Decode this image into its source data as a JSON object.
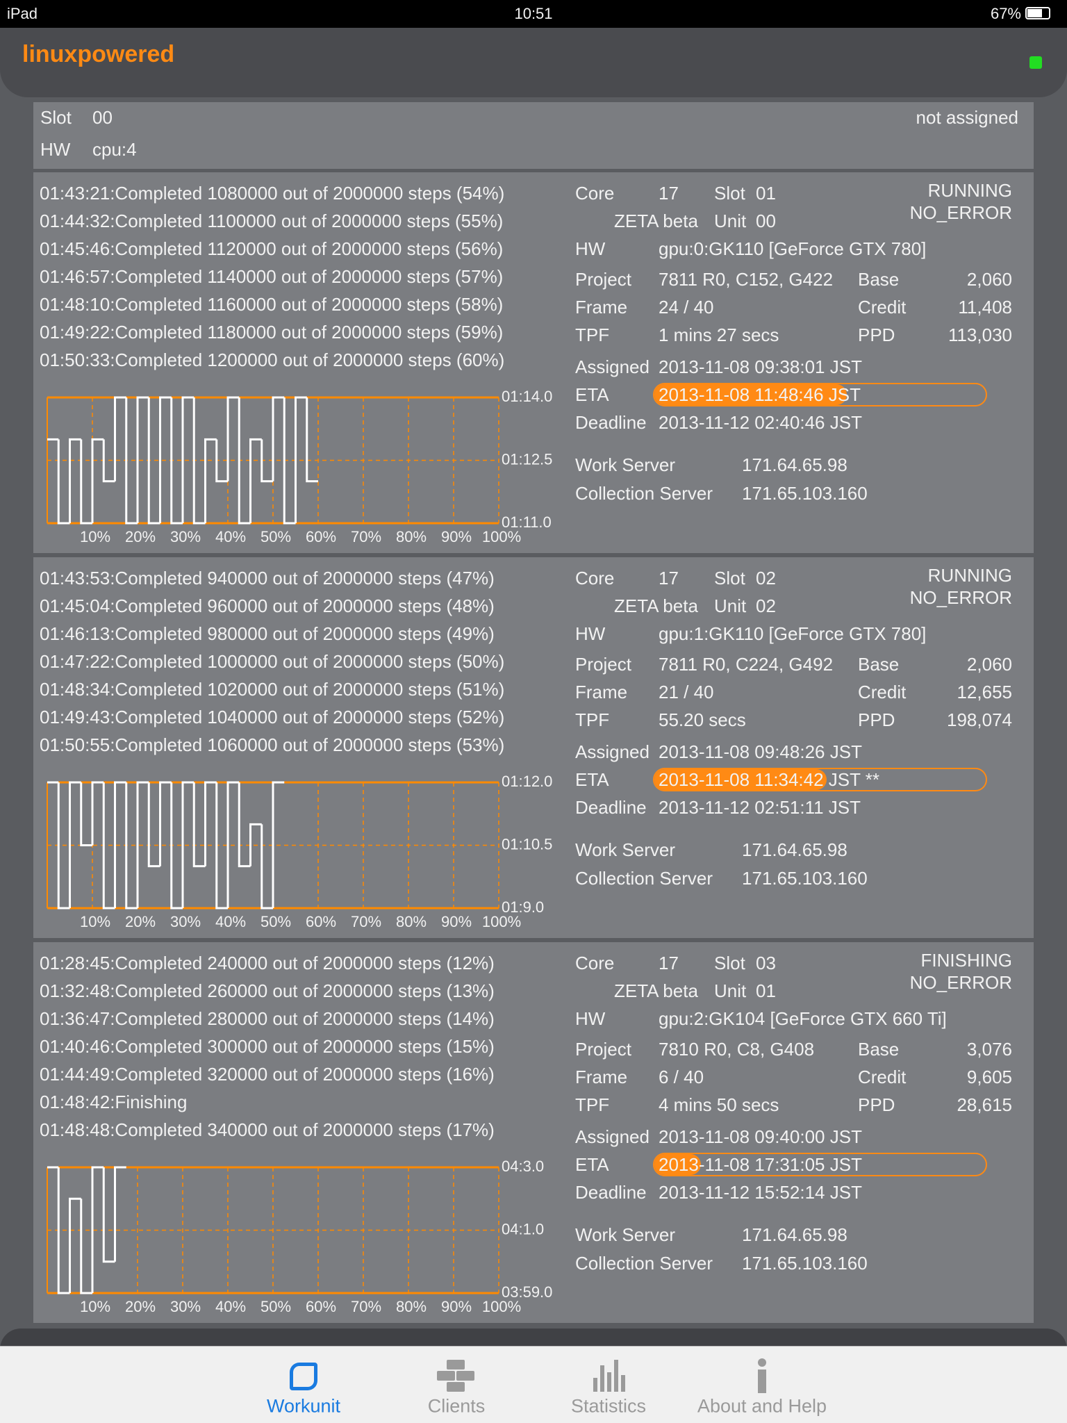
{
  "status_bar": {
    "device": "iPad",
    "time": "10:51",
    "battery": "67%"
  },
  "header": {
    "title": "linuxpowered"
  },
  "slot": {
    "slot_label": "Slot",
    "slot": "00",
    "hw_label": "HW",
    "hw": "cpu:4",
    "status": "not assigned"
  },
  "workunits": [
    {
      "log": [
        "01:43:21:Completed 1080000 out of 2000000 steps (54%)",
        "01:44:32:Completed 1100000 out of 2000000 steps (55%)",
        "01:45:46:Completed 1120000 out of 2000000 steps (56%)",
        "01:46:57:Completed 1140000 out of 2000000 steps (57%)",
        "01:48:10:Completed 1160000 out of 2000000 steps (58%)",
        "01:49:22:Completed 1180000 out of 2000000 steps (59%)",
        "01:50:33:Completed 1200000 out of 2000000 steps (60%)"
      ],
      "core_label": "Core",
      "core": "17",
      "slot_label": "Slot",
      "slot": "01",
      "core_name": "ZETA beta",
      "unit_label": "Unit",
      "unit": "00",
      "status": "RUNNING",
      "error": "NO_ERROR",
      "hw_label": "HW",
      "hw": "gpu:0:GK110 [GeForce GTX 780]",
      "project_label": "Project",
      "project": "7811 R0, C152, G422",
      "frame_label": "Frame",
      "frame": "24 / 40",
      "tpf_label": "TPF",
      "tpf": "1 mins 27 secs",
      "base_label": "Base",
      "base": "2,060",
      "credit_label": "Credit",
      "credit": "11,408",
      "ppd_label": "PPD",
      "ppd": "113,030",
      "assigned_label": "Assigned",
      "assigned": "2013-11-08 09:38:01 JST",
      "eta_label": "ETA",
      "eta": "2013-11-08 11:48:46 JST",
      "eta_progress": 58,
      "deadline_label": "Deadline",
      "deadline": "2013-11-12 02:40:46 JST",
      "ws_label": "Work Server",
      "ws": "171.64.65.98",
      "cs_label": "Collection Server",
      "cs": "171.65.103.160"
    },
    {
      "log": [
        "01:43:53:Completed 940000 out of 2000000 steps (47%)",
        "01:45:04:Completed 960000 out of 2000000 steps (48%)",
        "01:46:13:Completed 980000 out of 2000000 steps (49%)",
        "01:47:22:Completed 1000000 out of 2000000 steps (50%)",
        "01:48:34:Completed 1020000 out of 2000000 steps (51%)",
        "01:49:43:Completed 1040000 out of 2000000 steps (52%)",
        "01:50:55:Completed 1060000 out of 2000000 steps (53%)"
      ],
      "core_label": "Core",
      "core": "17",
      "slot_label": "Slot",
      "slot": "02",
      "core_name": "ZETA beta",
      "unit_label": "Unit",
      "unit": "02",
      "status": "RUNNING",
      "error": "NO_ERROR",
      "hw_label": "HW",
      "hw": "gpu:1:GK110 [GeForce GTX 780]",
      "project_label": "Project",
      "project": "7811 R0, C224, G492",
      "frame_label": "Frame",
      "frame": "21 / 40",
      "tpf_label": "TPF",
      "tpf": "55.20 secs",
      "base_label": "Base",
      "base": "2,060",
      "credit_label": "Credit",
      "credit": "12,655",
      "ppd_label": "PPD",
      "ppd": "198,074",
      "assigned_label": "Assigned",
      "assigned": "2013-11-08 09:48:26 JST",
      "eta_label": "ETA",
      "eta": "2013-11-08 11:34:42 JST **",
      "eta_progress": 52,
      "deadline_label": "Deadline",
      "deadline": "2013-11-12 02:51:11 JST",
      "ws_label": "Work Server",
      "ws": "171.64.65.98",
      "cs_label": "Collection Server",
      "cs": "171.65.103.160"
    },
    {
      "log": [
        "01:28:45:Completed 240000 out of 2000000 steps (12%)",
        "01:32:48:Completed 260000 out of 2000000 steps (13%)",
        "01:36:47:Completed 280000 out of 2000000 steps (14%)",
        "01:40:46:Completed 300000 out of 2000000 steps (15%)",
        "01:44:49:Completed 320000 out of 2000000 steps (16%)",
        "01:48:42:Finishing",
        "01:48:48:Completed 340000 out of 2000000 steps (17%)"
      ],
      "core_label": "Core",
      "core": "17",
      "slot_label": "Slot",
      "slot": "03",
      "core_name": "ZETA beta",
      "unit_label": "Unit",
      "unit": "01",
      "status": "FINISHING",
      "error": "NO_ERROR",
      "hw_label": "HW",
      "hw": "gpu:2:GK104 [GeForce GTX 660 Ti]",
      "project_label": "Project",
      "project": "7810 R0, C8, G408",
      "frame_label": "Frame",
      "frame": "6 / 40",
      "tpf_label": "TPF",
      "tpf": "4 mins 50 secs",
      "base_label": "Base",
      "base": "3,076",
      "credit_label": "Credit",
      "credit": "9,605",
      "ppd_label": "PPD",
      "ppd": "28,615",
      "assigned_label": "Assigned",
      "assigned": "2013-11-08 09:40:00 JST",
      "eta_label": "ETA",
      "eta": "2013-11-08 17:31:05 JST",
      "eta_progress": 14,
      "deadline_label": "Deadline",
      "deadline": "2013-11-12 15:52:14 JST",
      "ws_label": "Work Server",
      "ws": "171.64.65.98",
      "cs_label": "Collection Server",
      "cs": "171.65.103.160"
    }
  ],
  "chart_data": [
    {
      "type": "line",
      "color": "#ffffff",
      "grid_color": "#ff8a00",
      "x": [
        0,
        2.5,
        5,
        7.5,
        10,
        12.5,
        15,
        17.5,
        20,
        22.5,
        25,
        27.5,
        30,
        32.5,
        35,
        37.5,
        40,
        42.5,
        45,
        47.5,
        50,
        52.5,
        55,
        57.5
      ],
      "values": [
        73,
        71,
        73,
        71,
        73,
        72,
        74,
        71,
        74,
        71,
        74,
        71,
        74,
        71,
        73,
        72,
        74,
        71,
        73,
        72,
        74,
        71,
        74,
        72
      ],
      "xlim": [
        0,
        100
      ],
      "ylim": [
        71,
        74
      ],
      "xticks": [
        {
          "value": 10,
          "label": "10%"
        },
        {
          "value": 20,
          "label": "20%"
        },
        {
          "value": 30,
          "label": "30%"
        },
        {
          "value": 40,
          "label": "40%"
        },
        {
          "value": 50,
          "label": "50%"
        },
        {
          "value": 60,
          "label": "60%"
        },
        {
          "value": 70,
          "label": "70%"
        },
        {
          "value": 80,
          "label": "80%"
        },
        {
          "value": 90,
          "label": "90%"
        },
        {
          "value": 100,
          "label": "100%"
        }
      ],
      "yticks": [
        {
          "value": 71,
          "label": "01:11.0"
        },
        {
          "value": 72.5,
          "label": "01:12.5"
        },
        {
          "value": 74,
          "label": "01:14.0"
        }
      ]
    },
    {
      "type": "line",
      "color": "#ffffff",
      "grid_color": "#ff8a00",
      "x": [
        0,
        2.5,
        5,
        7.5,
        10,
        12.5,
        15,
        17.5,
        20,
        22.5,
        25,
        27.5,
        30,
        32.5,
        35,
        37.5,
        40,
        42.5,
        45,
        47.5,
        50
      ],
      "values": [
        72,
        69,
        72,
        70.5,
        72,
        69,
        72,
        69,
        72,
        70,
        72,
        69,
        72,
        70,
        72,
        69,
        72,
        70,
        71,
        69,
        72
      ],
      "xlim": [
        0,
        100
      ],
      "ylim": [
        69,
        72
      ],
      "xticks": [
        {
          "value": 10,
          "label": "10%"
        },
        {
          "value": 20,
          "label": "20%"
        },
        {
          "value": 30,
          "label": "30%"
        },
        {
          "value": 40,
          "label": "40%"
        },
        {
          "value": 50,
          "label": "50%"
        },
        {
          "value": 60,
          "label": "60%"
        },
        {
          "value": 70,
          "label": "70%"
        },
        {
          "value": 80,
          "label": "80%"
        },
        {
          "value": 90,
          "label": "90%"
        },
        {
          "value": 100,
          "label": "100%"
        }
      ],
      "yticks": [
        {
          "value": 69,
          "label": "01:9.0"
        },
        {
          "value": 70.5,
          "label": "01:10.5"
        },
        {
          "value": 72,
          "label": "01:12.0"
        }
      ]
    },
    {
      "type": "line",
      "color": "#ffffff",
      "grid_color": "#ff8a00",
      "x": [
        0,
        2.5,
        5,
        7.5,
        10,
        12.5,
        15
      ],
      "values": [
        243,
        239,
        242,
        239,
        243,
        240,
        243
      ],
      "xlim": [
        0,
        100
      ],
      "ylim": [
        239,
        243
      ],
      "xticks": [
        {
          "value": 10,
          "label": "10%"
        },
        {
          "value": 20,
          "label": "20%"
        },
        {
          "value": 30,
          "label": "30%"
        },
        {
          "value": 40,
          "label": "40%"
        },
        {
          "value": 50,
          "label": "50%"
        },
        {
          "value": 60,
          "label": "60%"
        },
        {
          "value": 70,
          "label": "70%"
        },
        {
          "value": 80,
          "label": "80%"
        },
        {
          "value": 90,
          "label": "90%"
        },
        {
          "value": 100,
          "label": "100%"
        }
      ],
      "yticks": [
        {
          "value": 239,
          "label": "03:59.0"
        },
        {
          "value": 241,
          "label": "04:1.0"
        },
        {
          "value": 243,
          "label": "04:3.0"
        }
      ]
    }
  ],
  "tabs": [
    "Workunit",
    "Clients",
    "Statistics",
    "About and Help"
  ]
}
